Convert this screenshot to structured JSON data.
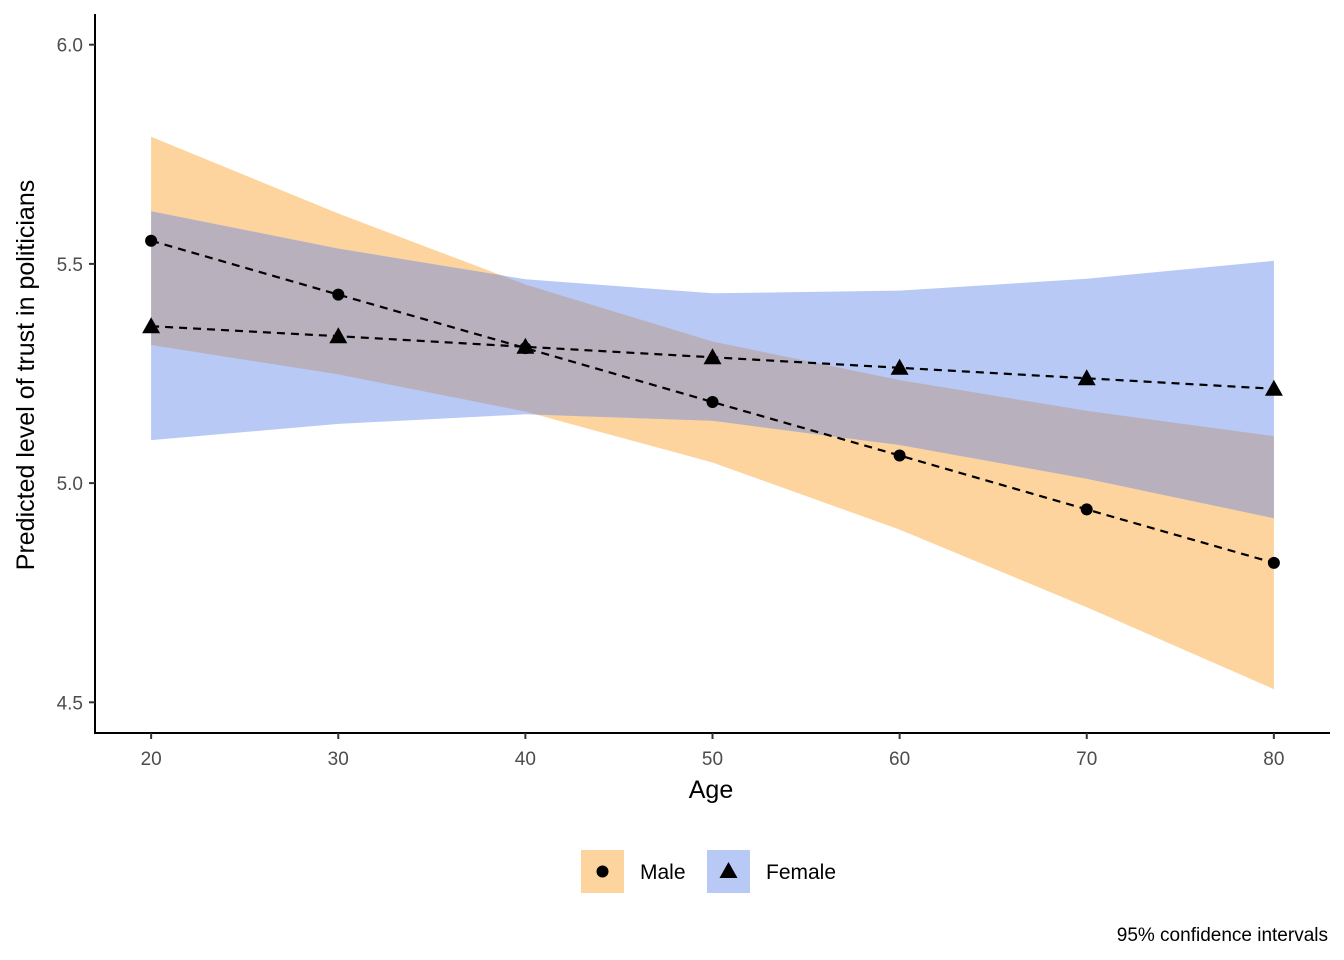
{
  "chart_data": {
    "type": "line",
    "title": "",
    "xlabel": "Age",
    "ylabel": "Predicted level of trust in politicians",
    "caption": "95% confidence intervals",
    "x": [
      20,
      30,
      40,
      50,
      60,
      70,
      80
    ],
    "x_ticks": [
      20,
      30,
      40,
      50,
      60,
      70,
      80
    ],
    "y_ticks": [
      4.5,
      5.0,
      5.5,
      6.0
    ],
    "y_tick_labels": [
      "4.5",
      "5.0",
      "5.5",
      "6.0"
    ],
    "x_tick_labels": [
      "20",
      "30",
      "40",
      "50",
      "60",
      "70",
      "80"
    ],
    "xlim": [
      17,
      83
    ],
    "ylim": [
      4.43,
      6.07
    ],
    "grid": false,
    "legend_position": "bottom",
    "series": [
      {
        "name": "Male",
        "marker": "circle",
        "line_style": "dashed",
        "ribbon_color": "#fdd49e",
        "values": [
          5.553,
          5.43,
          5.308,
          5.185,
          5.063,
          4.94,
          4.818
        ],
        "lower": [
          5.315,
          5.248,
          5.163,
          5.047,
          4.894,
          4.717,
          4.53
        ],
        "upper": [
          5.79,
          5.615,
          5.453,
          5.323,
          5.235,
          5.165,
          5.107
        ]
      },
      {
        "name": "Female",
        "marker": "triangle",
        "line_style": "dashed",
        "ribbon_color": "#b8c9f5",
        "values": [
          5.358,
          5.335,
          5.311,
          5.287,
          5.263,
          5.239,
          5.215
        ],
        "lower": [
          5.098,
          5.135,
          5.157,
          5.142,
          5.087,
          5.01,
          4.92
        ],
        "upper": [
          5.62,
          5.535,
          5.465,
          5.433,
          5.439,
          5.466,
          5.507
        ]
      }
    ],
    "overlap_color": "#b8b1bd"
  }
}
